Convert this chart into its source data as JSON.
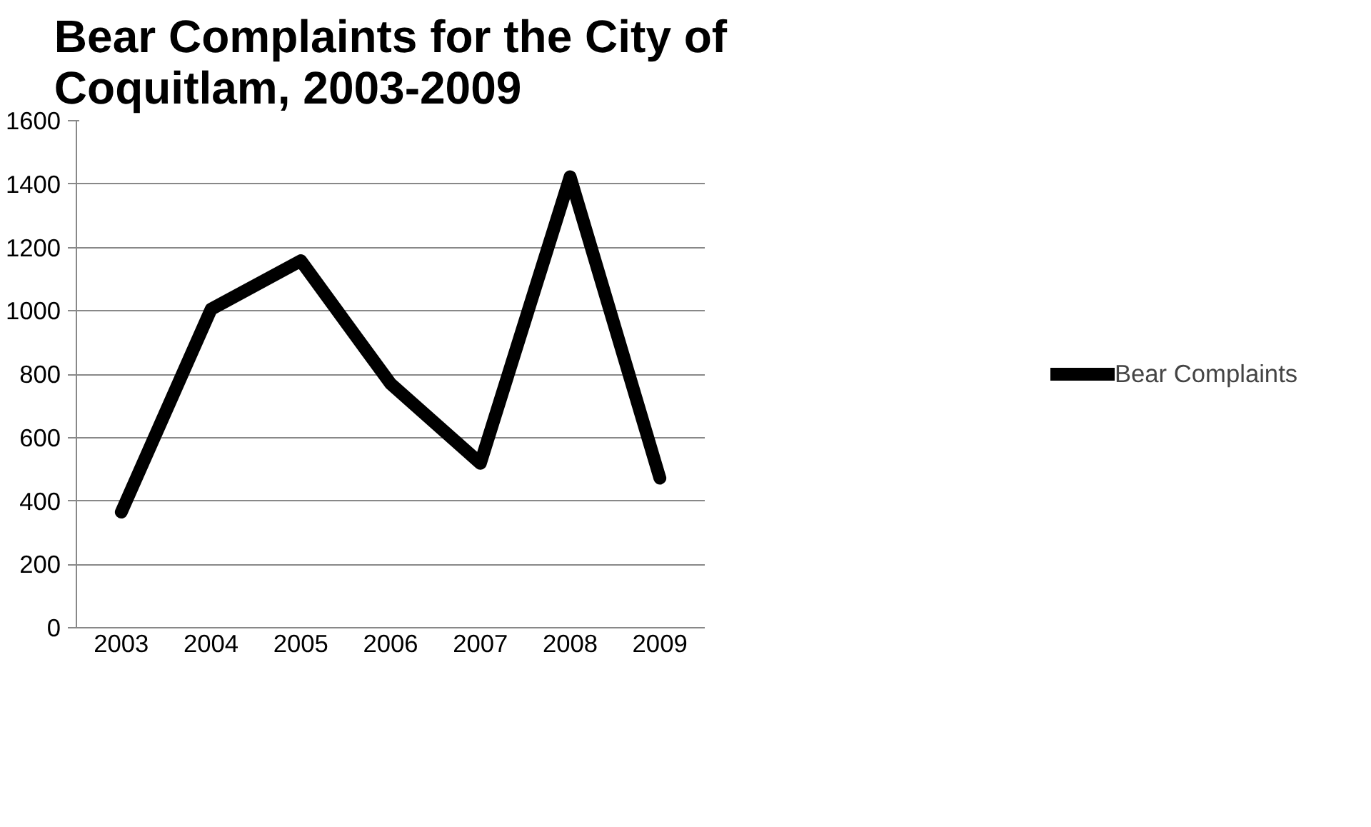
{
  "chart_data": {
    "type": "line",
    "title": "Bear Complaints for the City of Coquitlam, 2003-2009",
    "categories": [
      "2003",
      "2004",
      "2005",
      "2006",
      "2007",
      "2008",
      "2009"
    ],
    "series": [
      {
        "name": "Bear Complaints",
        "color": "#000000",
        "values": [
          365,
          1005,
          1158,
          770,
          519,
          1423,
          472
        ]
      }
    ],
    "ylim": [
      0,
      1600
    ],
    "yticks": [
      0,
      200,
      400,
      600,
      800,
      1000,
      1200,
      1400,
      1600
    ],
    "grid": "y",
    "legend": "right",
    "marker": "none",
    "line_style": "solid"
  }
}
